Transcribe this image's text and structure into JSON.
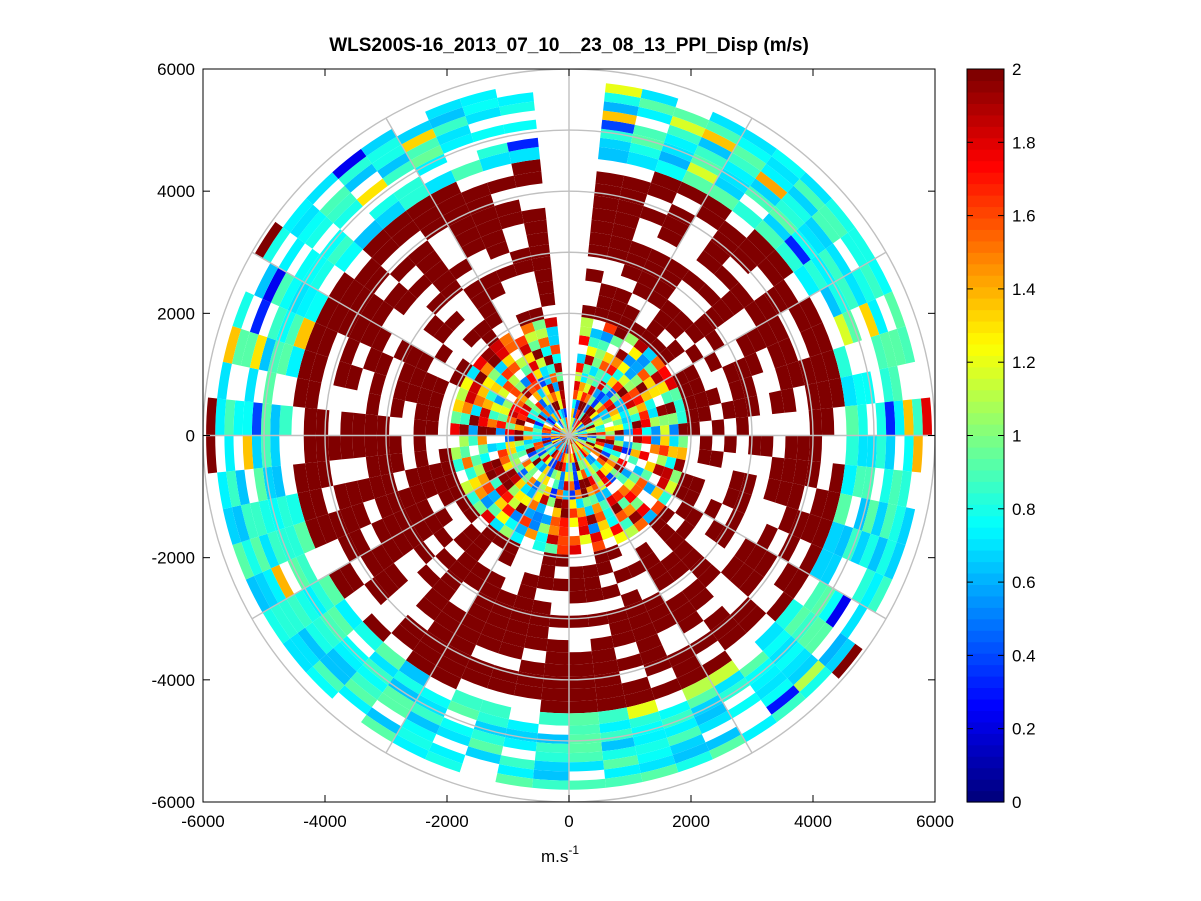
{
  "chart_data": {
    "type": "heatmap",
    "subtype": "polar-ppi",
    "title": "WLS200S-16_2013_07_10__23_08_13_PPI_Disp (m/s)",
    "xlabel_base": "m.s",
    "xlabel_exp": "-1",
    "ylabel": "",
    "xlim": [
      -6000,
      6000
    ],
    "ylim": [
      -6000,
      6000
    ],
    "xticks": [
      -6000,
      -4000,
      -2000,
      0,
      2000,
      4000,
      6000
    ],
    "xtick_labels": [
      "-6000",
      "-4000",
      "-2000",
      "0",
      "2000",
      "4000",
      "6000"
    ],
    "yticks": [
      -6000,
      -4000,
      -2000,
      0,
      2000,
      4000,
      6000
    ],
    "ytick_labels": [
      "-6000",
      "-4000",
      "-2000",
      "0",
      "2000",
      "4000",
      "6000"
    ],
    "colorbar": {
      "colormap": "jet",
      "clim": [
        0,
        2
      ],
      "ticks": [
        0,
        0.2,
        0.4,
        0.6,
        0.8,
        1,
        1.2,
        1.4,
        1.6,
        1.8,
        2
      ],
      "tick_labels": [
        "0",
        "0.2",
        "0.4",
        "0.6",
        "0.8",
        "1",
        "1.2",
        "1.4",
        "1.6",
        "1.8",
        "2"
      ]
    },
    "polar_grid": {
      "range_rings_m": [
        1000,
        2000,
        3000,
        4000,
        5000,
        6000
      ],
      "spoke_angles_deg": [
        0,
        30,
        60,
        90,
        120,
        150,
        180,
        210,
        240,
        270,
        300,
        330
      ],
      "color": "#c0c0c0"
    },
    "range_gates_m": [
      0,
      150,
      300,
      450,
      600,
      750,
      900,
      1050,
      1200,
      1350,
      1500,
      1650,
      1800,
      1950,
      2150,
      2350,
      2550,
      2750,
      2950,
      3150,
      3350,
      3550,
      3750,
      3950,
      4150,
      4350,
      4550,
      4750,
      4900,
      5050,
      5200,
      5350,
      5500,
      5650,
      5800,
      5950
    ],
    "azimuth_step_deg": 6,
    "data_gap_azimuth_deg": [
      -4,
      4
    ],
    "dispersion_by_range_band": [
      {
        "from_m": 0,
        "to_m": 1000,
        "pattern": "mixed",
        "mean": 1.2,
        "spread": 0.9,
        "coverage": 0.97
      },
      {
        "from_m": 1000,
        "to_m": 2000,
        "pattern": "mixed",
        "mean": 1.3,
        "spread": 0.8,
        "coverage": 0.9
      },
      {
        "from_m": 2000,
        "to_m": 3600,
        "pattern": "saturated",
        "mean": 2.0,
        "spread": 0.05,
        "coverage": 0.62
      },
      {
        "from_m": 3600,
        "to_m": 4550,
        "pattern": "saturated",
        "mean": 2.0,
        "spread": 0.05,
        "coverage": 0.72
      },
      {
        "from_m": 4550,
        "to_m": 5800,
        "pattern": "band",
        "mean": 0.78,
        "spread": 0.16,
        "coverage": 0.85
      },
      {
        "from_m": 5800,
        "to_m": 6000,
        "pattern": "sparse",
        "mean": 1.7,
        "spread": 0.4,
        "coverage": 0.15
      }
    ],
    "random_seed": 20130710
  }
}
